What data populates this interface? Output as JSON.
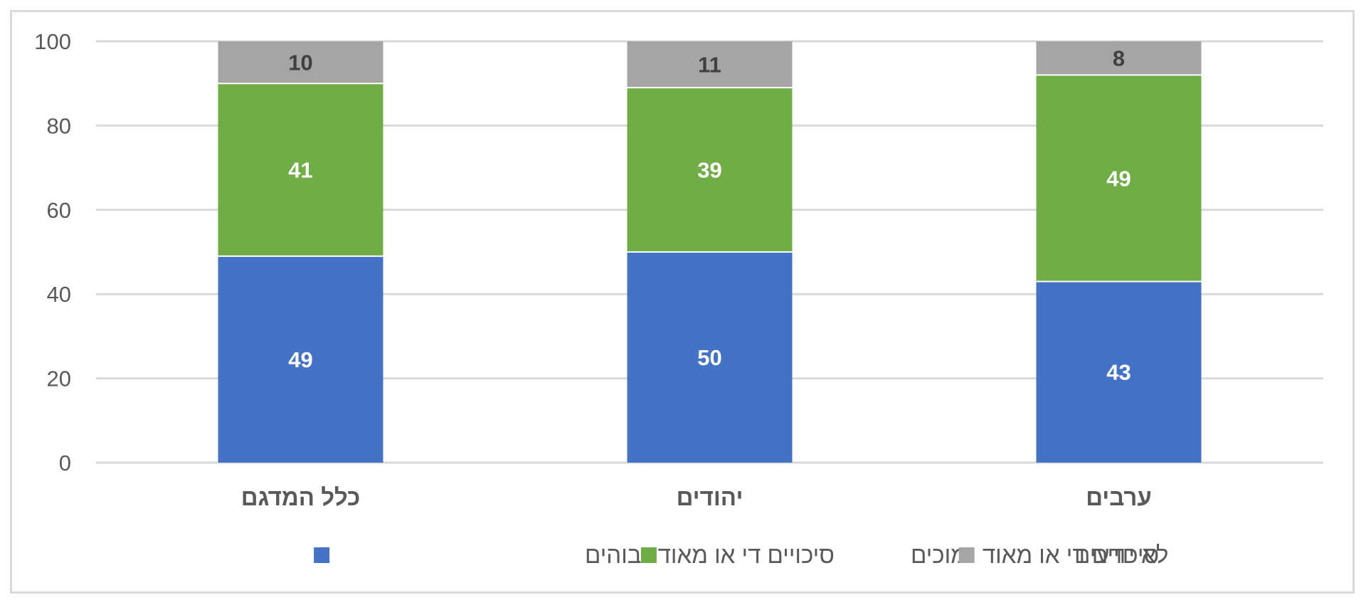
{
  "chart_data": {
    "type": "bar",
    "stacked": true,
    "categories": [
      "כלל המדגם",
      "יהודים",
      "ערבים"
    ],
    "series": [
      {
        "name": "סיכויים די או מאוד גבוהים",
        "color": "#4472c4",
        "values": [
          49,
          50,
          43
        ],
        "label_color": "#ffffff"
      },
      {
        "name": "סיכויים די או מאוד נמוכים",
        "color": "#70ad47",
        "values": [
          41,
          39,
          49
        ],
        "label_color": "#ffffff"
      },
      {
        "name": "לא יודעים",
        "color": "#a5a5a5",
        "values": [
          10,
          11,
          8
        ],
        "label_color": "#404040"
      }
    ],
    "ylim": [
      0,
      100
    ],
    "yticks": [
      0,
      20,
      40,
      60,
      80,
      100
    ],
    "grid": true,
    "legend_position": "bottom",
    "title": "",
    "xlabel": "",
    "ylabel": ""
  }
}
